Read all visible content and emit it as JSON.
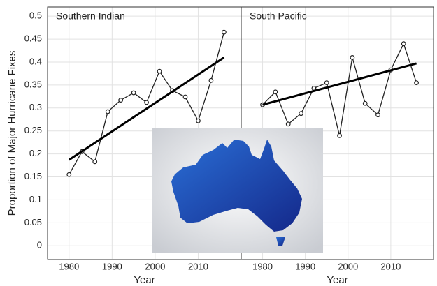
{
  "chart_data": [
    {
      "type": "line",
      "title": "Southern Indian",
      "ylabel": "Proportion of Major Hurricane Fixes",
      "xlabel": "Year",
      "x": [
        1980,
        1983,
        1986,
        1989,
        1992,
        1995,
        1998,
        2001,
        2004,
        2007,
        2010,
        2013,
        2016
      ],
      "series": [
        {
          "color": "#222222",
          "values": [
            0.155,
            0.205,
            0.183,
            0.292,
            0.317,
            0.333,
            0.312,
            0.38,
            0.338,
            0.324,
            0.272,
            0.36,
            0.465
          ]
        }
      ],
      "trendline": {
        "color": "#000000",
        "x": [
          1980,
          2016
        ],
        "values": [
          0.187,
          0.41
        ]
      },
      "xlim": [
        1975,
        2020
      ],
      "xticks": [
        1980,
        1990,
        2000,
        2010
      ],
      "ylim": [
        -0.03,
        0.52
      ],
      "yticks": [
        0,
        0.05,
        0.1,
        0.15,
        0.2,
        0.25,
        0.3,
        0.35,
        0.4,
        0.45,
        0.5
      ],
      "grid": true
    },
    {
      "type": "line",
      "title": "South Pacific",
      "xlabel": "Year",
      "x": [
        1980,
        1983,
        1986,
        1989,
        1992,
        1995,
        1998,
        2001,
        2004,
        2007,
        2010,
        2013,
        2016
      ],
      "series": [
        {
          "color": "#222222",
          "values": [
            0.307,
            0.335,
            0.265,
            0.288,
            0.343,
            0.355,
            0.24,
            0.41,
            0.31,
            0.285,
            0.383,
            0.44,
            0.355
          ]
        }
      ],
      "trendline": {
        "color": "#000000",
        "x": [
          1980,
          2016
        ],
        "values": [
          0.307,
          0.397
        ]
      },
      "xlim": [
        1975,
        2020
      ],
      "xticks": [
        1980,
        1990,
        2000,
        2010
      ],
      "sharey": true,
      "grid": true
    }
  ]
}
